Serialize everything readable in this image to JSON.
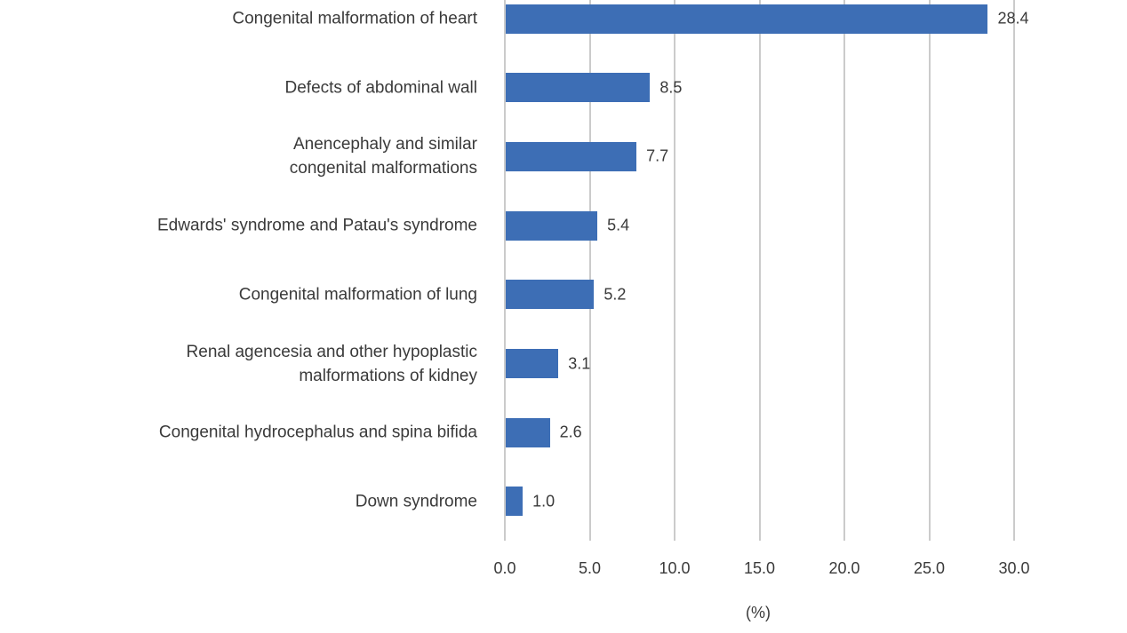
{
  "chart_data": {
    "type": "bar",
    "orientation": "horizontal",
    "title": "",
    "categories": [
      "Congenital malformation of heart",
      "Defects of abdominal wall",
      "Anencephaly and similar\ncongenital malformations",
      "Edwards' syndrome and Patau's syndrome",
      "Congenital malformation of lung",
      "Renal agencesia and other hypoplastic\nmalformations of kidney",
      "Congenital hydrocephalus and spina bifida",
      "Down syndrome"
    ],
    "values": [
      28.4,
      8.5,
      7.7,
      5.4,
      5.2,
      3.1,
      2.6,
      1.0
    ],
    "value_labels": [
      "28.4",
      "8.5",
      "7.7",
      "5.4",
      "5.2",
      "3.1",
      "2.6",
      "1.0"
    ],
    "xlabel": "(%)",
    "xlim": [
      0,
      30
    ],
    "xticks": [
      0,
      5,
      10,
      15,
      20,
      25,
      30
    ],
    "xtick_labels": [
      "0.0",
      "5.0",
      "10.0",
      "15.0",
      "20.0",
      "25.0",
      "30.0"
    ],
    "grid": true,
    "legend": false,
    "bar_color": "#3d6eb5",
    "gridline_color": "#cbcbcb",
    "text_color": "#3a3a3a"
  }
}
